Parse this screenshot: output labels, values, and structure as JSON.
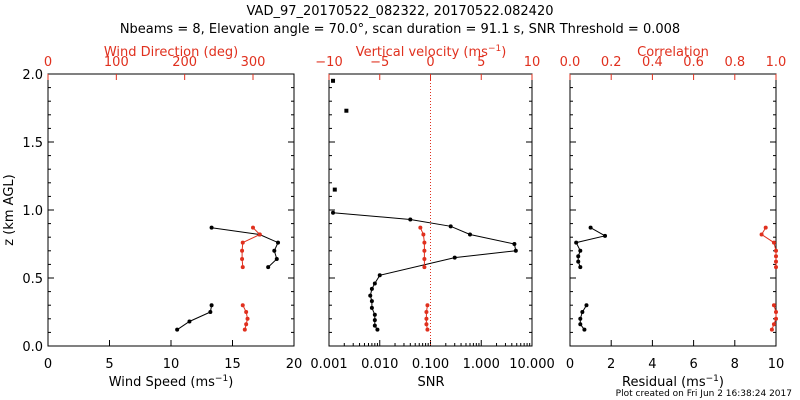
{
  "figure": {
    "title_line1": "VAD_97_20170522_082322, 20170522.082420",
    "title_line2": "Nbeams = 8, Elevation angle = 70.0°, scan duration = 91.1 s, SNR Threshold = 0.008",
    "footer": "Plot created on Fri Jun  2 16:38:24 2017"
  },
  "colors": {
    "axis": "#000000",
    "secondary": "#e0301e"
  },
  "chart_data": [
    {
      "type": "line",
      "name": "wind",
      "ylabel": "z (km AGL)",
      "ylim": [
        0,
        2.0
      ],
      "yticks": [
        "0.0",
        "0.5",
        "1.0",
        "1.5",
        "2.0"
      ],
      "bottom_axis": {
        "label": "Wind Speed (ms",
        "label_sup": "−1",
        "label_end": ")",
        "lim": [
          0,
          20
        ],
        "ticks": [
          "0",
          "5",
          "10",
          "15",
          "20"
        ]
      },
      "top_axis": {
        "label": "Wind Direction (deg)",
        "lim": [
          0,
          360
        ],
        "ticks": [
          "0",
          "100",
          "200",
          "300"
        ]
      },
      "series": [
        {
          "axis": "bottom",
          "color": "#000000",
          "x": [
            10.5,
            11.5,
            13.2,
            13.3
          ],
          "y": [
            0.12,
            0.18,
            0.25,
            0.3
          ]
        },
        {
          "axis": "bottom",
          "color": "#000000",
          "x": [
            13.3,
            17.2,
            18.7,
            18.4,
            18.6,
            17.9
          ],
          "y": [
            0.87,
            0.82,
            0.76,
            0.7,
            0.64,
            0.58
          ]
        },
        {
          "axis": "top",
          "color": "#e0301e",
          "x": [
            285,
            290,
            292,
            290,
            288
          ],
          "y": [
            0.3,
            0.25,
            0.2,
            0.16,
            0.12
          ]
        },
        {
          "axis": "top",
          "color": "#e0301e",
          "x": [
            300,
            310,
            285,
            284,
            284,
            285
          ],
          "y": [
            0.87,
            0.82,
            0.76,
            0.7,
            0.64,
            0.58
          ]
        }
      ]
    },
    {
      "type": "line",
      "name": "snr",
      "ylim": [
        0,
        2.0
      ],
      "bottom_axis": {
        "label": "SNR",
        "scale": "log",
        "lim": [
          0.001,
          10
        ],
        "ticks": [
          "0.001",
          "0.010",
          "0.100",
          "1.000",
          "10.000"
        ],
        "tick_values": [
          0.001,
          0.01,
          0.1,
          1,
          10
        ]
      },
      "top_axis": {
        "label": "Vertical velocity (ms",
        "label_sup": "−1",
        "label_end": ")",
        "lim": [
          -10,
          10
        ],
        "ticks": [
          "−10",
          "−5",
          "0",
          "5",
          "10"
        ],
        "tick_values": [
          -10,
          -5,
          0,
          5,
          10
        ],
        "zero_line": true
      },
      "isolated_points": {
        "x": [
          0.0012,
          0.0022,
          0.0013
        ],
        "y": [
          1.95,
          1.73,
          1.15
        ]
      },
      "series": [
        {
          "axis": "bottom",
          "color": "#000000",
          "x": [
            0.0012,
            0.04,
            0.25,
            0.6,
            4.5,
            4.8,
            0.3,
            0.01,
            0.008,
            0.007,
            0.0065,
            0.007,
            0.007,
            0.008,
            0.008,
            0.008,
            0.009
          ],
          "y": [
            0.98,
            0.93,
            0.88,
            0.82,
            0.75,
            0.7,
            0.65,
            0.52,
            0.46,
            0.42,
            0.37,
            0.33,
            0.28,
            0.23,
            0.19,
            0.15,
            0.12
          ]
        },
        {
          "axis": "top",
          "color": "#e0301e",
          "x": [
            -1.0,
            -0.7,
            -0.6,
            -0.6,
            -0.6,
            -0.6
          ],
          "y": [
            0.87,
            0.82,
            0.76,
            0.7,
            0.64,
            0.58
          ]
        },
        {
          "axis": "top",
          "color": "#e0301e",
          "x": [
            -0.3,
            -0.4,
            -0.4,
            -0.4,
            -0.3
          ],
          "y": [
            0.3,
            0.25,
            0.2,
            0.16,
            0.12
          ]
        }
      ]
    },
    {
      "type": "line",
      "name": "residual",
      "ylim": [
        0,
        2.0
      ],
      "bottom_axis": {
        "label": "Residual (ms",
        "label_sup": "−1",
        "label_end": ")",
        "lim": [
          0,
          10
        ],
        "ticks": [
          "0",
          "2",
          "4",
          "6",
          "8",
          "10"
        ]
      },
      "top_axis": {
        "label": "Correlation",
        "lim": [
          0,
          1.0
        ],
        "ticks": [
          "0.0",
          "0.2",
          "0.4",
          "0.6",
          "0.8",
          "1.0"
        ]
      },
      "series": [
        {
          "axis": "bottom",
          "color": "#000000",
          "x": [
            1.0,
            1.7,
            0.3,
            0.5,
            0.4,
            0.4,
            0.5
          ],
          "y": [
            0.87,
            0.81,
            0.76,
            0.7,
            0.66,
            0.62,
            0.58
          ]
        },
        {
          "axis": "bottom",
          "color": "#000000",
          "x": [
            0.8,
            0.6,
            0.5,
            0.5,
            0.7
          ],
          "y": [
            0.3,
            0.25,
            0.2,
            0.16,
            0.12
          ]
        },
        {
          "axis": "top",
          "color": "#e0301e",
          "x": [
            0.95,
            0.93,
            0.99,
            1.0,
            1.0,
            1.0,
            1.0
          ],
          "y": [
            0.87,
            0.82,
            0.76,
            0.7,
            0.66,
            0.62,
            0.58
          ]
        },
        {
          "axis": "top",
          "color": "#e0301e",
          "x": [
            0.99,
            1.0,
            1.0,
            0.99,
            0.98
          ],
          "y": [
            0.3,
            0.25,
            0.2,
            0.16,
            0.12
          ]
        }
      ]
    }
  ]
}
